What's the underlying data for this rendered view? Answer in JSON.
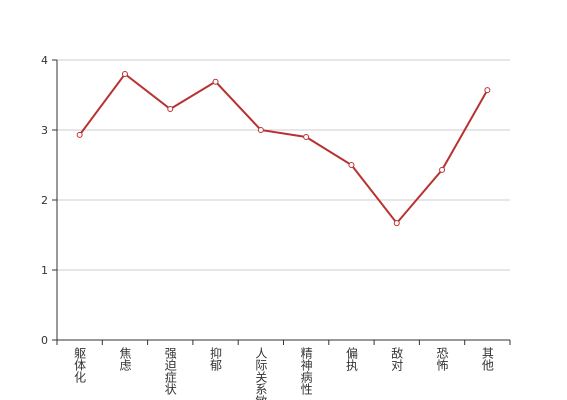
{
  "chart_data": {
    "type": "line",
    "categories": [
      "躯体化",
      "焦虑",
      "强迫症状",
      "抑郁",
      "人际关系敏感",
      "精神病性",
      "偏执",
      "敌对",
      "恐怖",
      "其他"
    ],
    "series": [
      {
        "color": "#b83232",
        "values": [
          2.93,
          3.8,
          3.3,
          3.69,
          3.0,
          2.9,
          2.5,
          1.67,
          2.43,
          3.57
        ]
      }
    ],
    "ylim": [
      0,
      4
    ],
    "yticks": [
      0,
      1,
      2,
      3,
      4
    ],
    "grid": true
  }
}
